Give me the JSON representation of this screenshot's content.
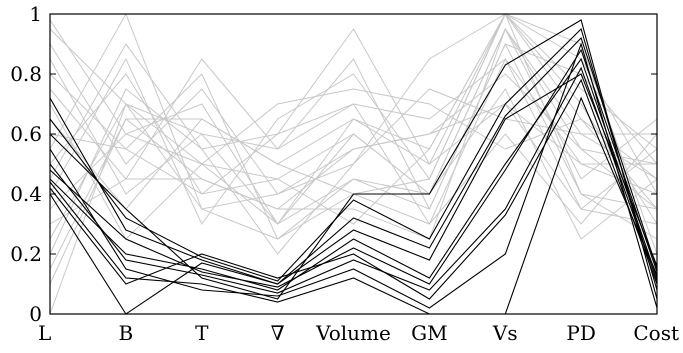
{
  "chart_data": {
    "type": "parallel-coordinates",
    "axes": [
      "L",
      "B",
      "T",
      "∇",
      "Volume",
      "GM",
      "Vs",
      "PD",
      "Cost"
    ],
    "ylim": [
      0,
      1
    ],
    "yticks": [
      "0",
      "0.2",
      "0.4",
      "0.6",
      "0.8",
      "1"
    ],
    "grid": false,
    "colors": {
      "background_series": "#c8c8c8",
      "highlight_series": "#000000",
      "frame": "#000000"
    },
    "series": [
      {
        "group": "background",
        "lines": [
          [
            0.98,
            0.6,
            0.5,
            0.45,
            0.6,
            0.4,
            0.95,
            0.6,
            0.45
          ],
          [
            0.0,
            0.7,
            0.6,
            0.3,
            0.65,
            0.55,
            1.0,
            0.4,
            0.35
          ],
          [
            0.55,
            1.0,
            0.35,
            0.25,
            0.45,
            0.35,
            0.9,
            0.8,
            0.5
          ],
          [
            0.3,
            0.45,
            0.85,
            0.55,
            0.7,
            0.65,
            0.85,
            0.5,
            0.4
          ],
          [
            0.8,
            0.55,
            0.4,
            0.6,
            0.95,
            0.5,
            0.7,
            0.35,
            0.55
          ],
          [
            0.2,
            0.75,
            0.55,
            0.2,
            0.5,
            0.85,
            1.0,
            0.7,
            0.3
          ],
          [
            0.65,
            0.35,
            0.65,
            0.5,
            0.4,
            0.3,
            0.6,
            0.3,
            0.6
          ],
          [
            0.4,
            0.85,
            0.3,
            0.65,
            0.8,
            0.45,
            1.0,
            0.9,
            0.2
          ],
          [
            0.9,
            0.5,
            0.75,
            0.4,
            0.55,
            0.6,
            0.8,
            0.55,
            0.5
          ],
          [
            0.1,
            0.65,
            0.45,
            0.35,
            0.35,
            0.25,
            0.95,
            0.45,
            0.65
          ],
          [
            0.7,
            0.25,
            0.5,
            0.7,
            0.75,
            0.7,
            0.55,
            0.65,
            0.35
          ],
          [
            0.35,
            0.6,
            0.7,
            0.3,
            0.6,
            0.4,
            0.75,
            0.25,
            0.45
          ],
          [
            0.5,
            0.8,
            0.4,
            0.45,
            0.3,
            0.55,
            1.0,
            0.75,
            0.55
          ],
          [
            0.85,
            0.4,
            0.6,
            0.55,
            0.85,
            0.35,
            0.9,
            0.4,
            0.25
          ],
          [
            0.25,
            0.7,
            0.35,
            0.4,
            0.5,
            0.75,
            0.65,
            0.6,
            0.6
          ],
          [
            0.6,
            0.55,
            0.8,
            0.25,
            0.4,
            0.45,
            1.0,
            0.85,
            0.4
          ],
          [
            0.45,
            0.9,
            0.55,
            0.6,
            0.7,
            0.3,
            0.85,
            0.35,
            0.3
          ],
          [
            0.75,
            0.45,
            0.45,
            0.35,
            0.55,
            0.6,
            0.7,
            0.5,
            0.5
          ],
          [
            0.15,
            0.65,
            0.65,
            0.5,
            0.65,
            0.5,
            1.0,
            0.65,
            0.45
          ],
          [
            0.95,
            0.7,
            0.5,
            0.3,
            0.45,
            0.4,
            0.95,
            0.55,
            0.35
          ]
        ]
      },
      {
        "group": "highlight",
        "lines": [
          [
            0.72,
            0.28,
            0.18,
            0.1,
            0.32,
            0.22,
            0.66,
            0.92,
            0.15
          ],
          [
            0.45,
            0.2,
            0.15,
            0.08,
            0.25,
            0.12,
            0.5,
            0.85,
            0.12
          ],
          [
            0.6,
            0.35,
            0.12,
            0.05,
            0.4,
            0.4,
            0.83,
            0.98,
            0.05
          ],
          [
            0.42,
            0.1,
            0.2,
            0.12,
            0.2,
            0.05,
            0.33,
            0.78,
            0.1
          ],
          [
            0.55,
            0.15,
            0.08,
            0.06,
            0.15,
            0.02,
            0.2,
            0.9,
            0.02
          ],
          [
            0.4,
            0.0,
            0.17,
            0.1,
            0.28,
            0.18,
            0.65,
            0.8,
            0.16
          ],
          [
            0.48,
            0.25,
            0.14,
            0.09,
            0.22,
            0.1,
            0.48,
            0.88,
            0.14
          ],
          [
            0.65,
            0.32,
            0.19,
            0.11,
            0.38,
            0.25,
            0.7,
            0.95,
            0.08
          ],
          [
            0.44,
            0.12,
            0.1,
            0.04,
            0.12,
            0.0,
            0.0,
            0.72,
            0.13
          ],
          [
            0.5,
            0.18,
            0.13,
            0.07,
            0.18,
            0.08,
            0.35,
            0.82,
            0.11
          ]
        ]
      }
    ]
  }
}
